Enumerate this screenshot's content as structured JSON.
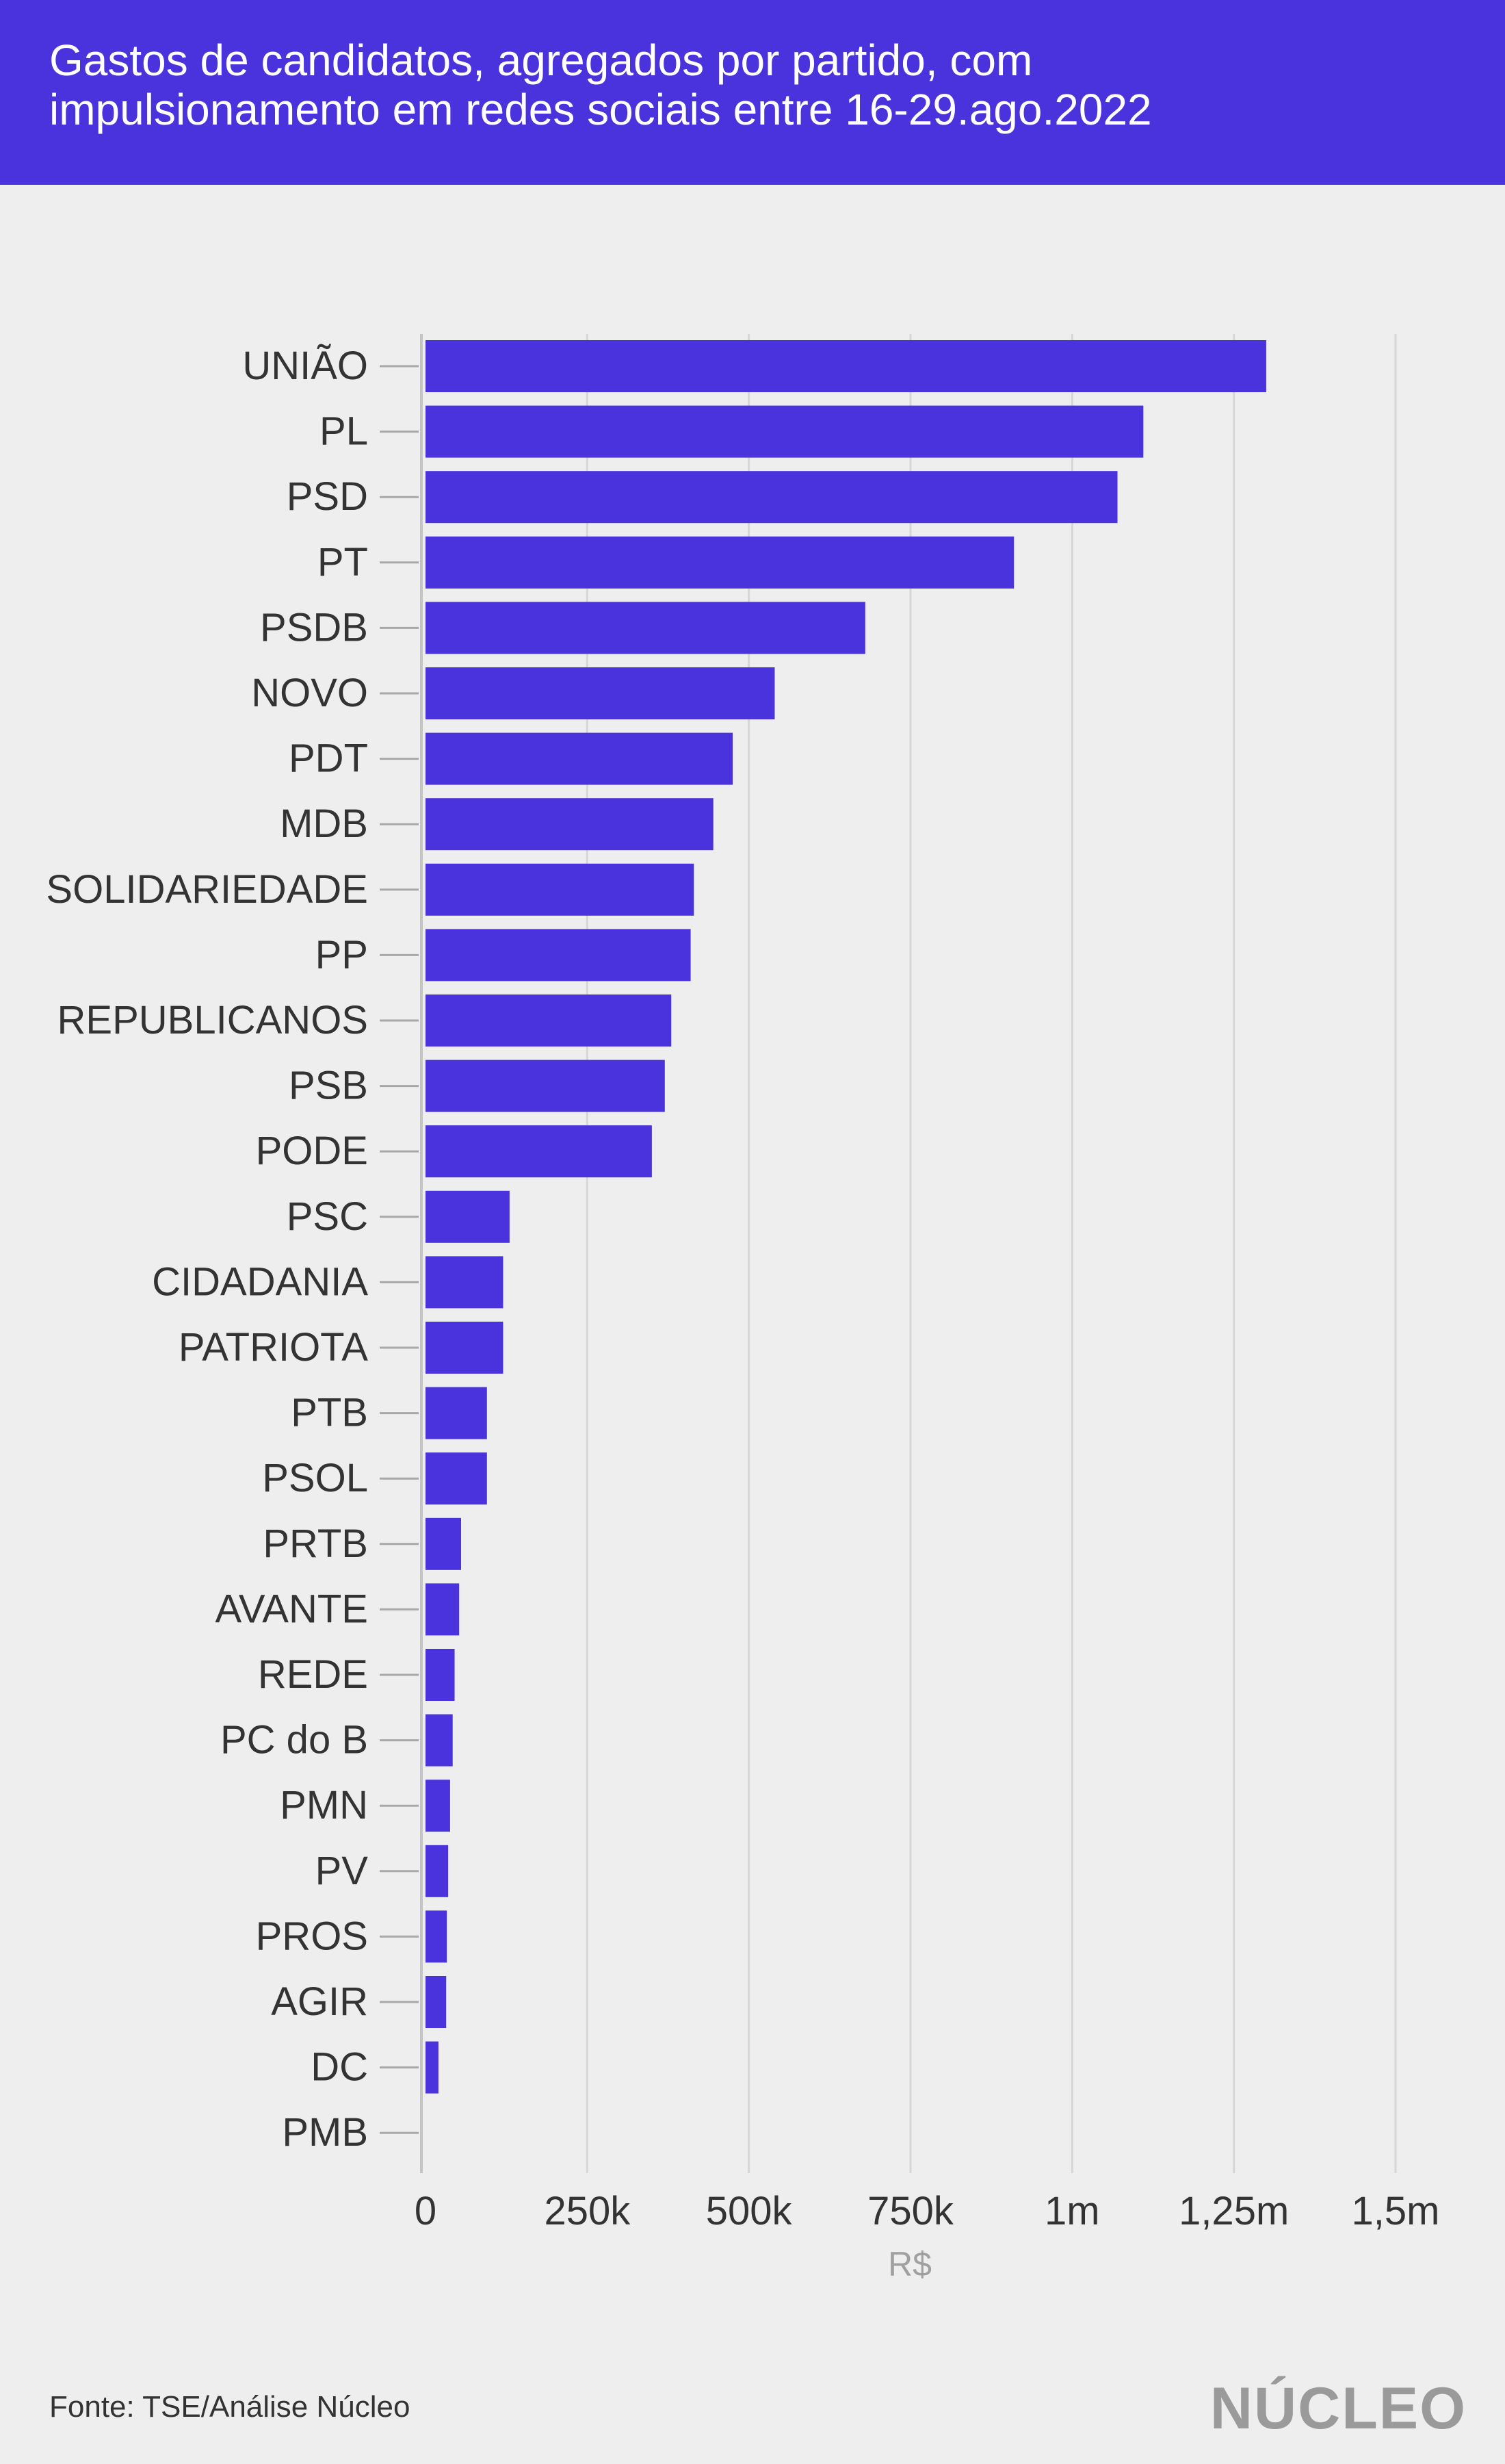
{
  "header": {
    "title_line1": "Gastos de candidatos, agregados por partido, com",
    "title_line2": "impulsionamento em redes sociais entre 16-29.ago.2022",
    "background": "#4a32dc"
  },
  "footer": {
    "source": "Fonte: TSE/Análise Núcleo",
    "logo": "NÚCLEO"
  },
  "chart_data": {
    "type": "bar",
    "orientation": "horizontal",
    "categories": [
      "UNIÃO",
      "PL",
      "PSD",
      "PT",
      "PSDB",
      "NOVO",
      "PDT",
      "MDB",
      "SOLIDARIEDADE",
      "PP",
      "REPUBLICANOS",
      "PSB",
      "PODE",
      "PSC",
      "CIDADANIA",
      "PATRIOTA",
      "PTB",
      "PSOL",
      "PRTB",
      "AVANTE",
      "REDE",
      "PC do B",
      "PMN",
      "PV",
      "PROS",
      "AGIR",
      "DC",
      "PMB"
    ],
    "values": [
      1300000,
      1110000,
      1070000,
      910000,
      680000,
      540000,
      475000,
      445000,
      415000,
      410000,
      380000,
      370000,
      350000,
      130000,
      120000,
      120000,
      95000,
      95000,
      55000,
      52000,
      45000,
      42000,
      38000,
      35000,
      33000,
      32000,
      20000,
      0
    ],
    "xlim": [
      0,
      1500000
    ],
    "xticks": [
      0,
      250000,
      500000,
      750000,
      1000000,
      1250000,
      1500000
    ],
    "xtick_labels": [
      "0",
      "250k",
      "500k",
      "750k",
      "1m",
      "1,25m",
      "1,5m"
    ],
    "xlabel": "R$",
    "bar_color": "#4a32dc",
    "grid": true
  }
}
